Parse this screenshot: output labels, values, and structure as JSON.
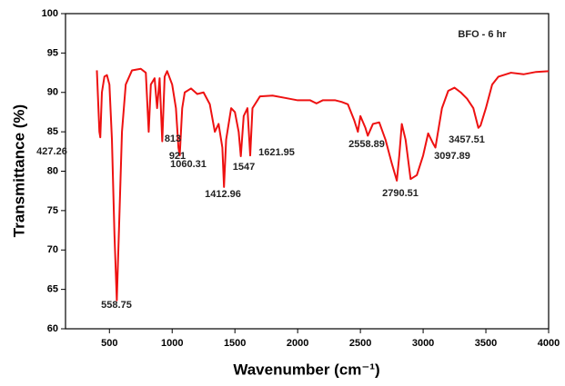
{
  "chart_data": {
    "type": "line",
    "annotations": [
      "BFO - 6 hr",
      "427.26",
      "558.75",
      "813",
      "921",
      "1060.31",
      "1412.96",
      "1547",
      "1621.95",
      "2558.89",
      "2790.51",
      "3097.89",
      "3457.51"
    ],
    "x_label": "Wavenumber (cm⁻¹)",
    "y_label": "Transmittance (%)",
    "xlim": [
      150,
      4000
    ],
    "xticks": [
      500,
      1000,
      1500,
      2000,
      2500,
      3000,
      3500,
      4000
    ],
    "ylim": [
      60,
      100
    ],
    "yticks": [
      60,
      65,
      70,
      75,
      80,
      85,
      90,
      95,
      100
    ],
    "grid": false,
    "series": [
      {
        "color": "#ee1111",
        "x": [
          400,
          420,
          427.26,
          440,
          460,
          480,
          500,
          520,
          540,
          558.75,
          575,
          600,
          630,
          680,
          750,
          790,
          813,
          830,
          860,
          880,
          900,
          921,
          940,
          960,
          1000,
          1030,
          1050,
          1060.31,
          1080,
          1100,
          1150,
          1200,
          1250,
          1300,
          1340,
          1370,
          1400,
          1412.96,
          1430,
          1470,
          1500,
          1530,
          1547,
          1570,
          1600,
          1621.95,
          1640,
          1700,
          1800,
          1900,
          2000,
          2100,
          2150,
          2200,
          2300,
          2350,
          2400,
          2450,
          2480,
          2500,
          2540,
          2558.89,
          2600,
          2650,
          2700,
          2750,
          2790.51,
          2810,
          2830,
          2860,
          2900,
          2950,
          3000,
          3040,
          3080,
          3097.89,
          3150,
          3200,
          3250,
          3300,
          3350,
          3400,
          3440,
          3457.51,
          3500,
          3550,
          3600,
          3700,
          3800,
          3900,
          4000
        ],
        "values": [
          92.8,
          85,
          84.3,
          90,
          92,
          92.2,
          91,
          84,
          72,
          63.6,
          72,
          85,
          91,
          92.8,
          93,
          92.5,
          85,
          91,
          91.8,
          88,
          91.8,
          83.8,
          92,
          92.7,
          91,
          88,
          83,
          82,
          88,
          90,
          90.5,
          89.8,
          90,
          88.5,
          85,
          86,
          83,
          78,
          84,
          88,
          87.5,
          85,
          81.9,
          87,
          88,
          82,
          88,
          89.5,
          89.6,
          89.3,
          89,
          89,
          88.6,
          89,
          89,
          88.8,
          88.5,
          86.5,
          85,
          87,
          85.5,
          84.5,
          86,
          86.2,
          84,
          81,
          78.8,
          82,
          86,
          84,
          79,
          79.5,
          82,
          84.8,
          83.5,
          83,
          88,
          90.2,
          90.6,
          90,
          89.2,
          88,
          85.5,
          85.8,
          88,
          91,
          92,
          92.5,
          92.3,
          92.6,
          92.7
        ]
      }
    ]
  }
}
